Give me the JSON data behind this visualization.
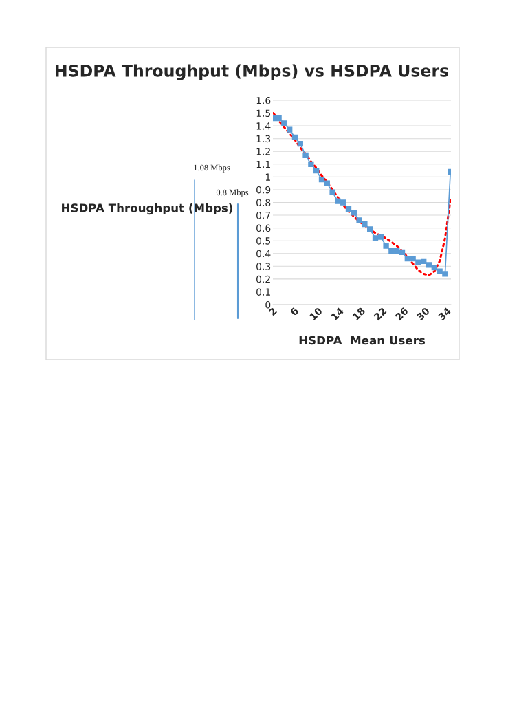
{
  "chart_data": {
    "type": "line",
    "title": "HSDPA Throughput (Mbps) vs HSDPA Users",
    "xlabel": "HSDPA  Mean Users",
    "ylabel": "HSDPA Throughput (Mbps)",
    "categories": [
      "2",
      null,
      null,
      null,
      "6",
      null,
      null,
      null,
      "10",
      null,
      null,
      null,
      "14",
      null,
      null,
      null,
      "18",
      null,
      null,
      null,
      "22",
      null,
      null,
      null,
      "26",
      null,
      null,
      null,
      "30",
      null,
      null,
      null,
      "34",
      null
    ],
    "series": [
      {
        "color": "#5b9bd5",
        "marker": "square",
        "line_style": "solid",
        "values": [
          1.46,
          1.46,
          1.42,
          1.37,
          1.31,
          1.26,
          1.17,
          1.1,
          1.05,
          0.98,
          0.95,
          0.88,
          0.81,
          0.8,
          0.75,
          0.72,
          0.66,
          0.63,
          0.59,
          0.52,
          0.53,
          0.46,
          0.42,
          0.42,
          0.41,
          0.36,
          0.36,
          0.33,
          0.34,
          0.31,
          0.29,
          0.26,
          0.24,
          1.04
        ]
      },
      {
        "color": "#ff0000",
        "marker": "none",
        "line_style": "dotted",
        "values": [
          1.5,
          1.44,
          1.39,
          1.34,
          1.29,
          1.23,
          1.18,
          1.12,
          1.07,
          1.01,
          0.96,
          0.9,
          0.84,
          0.78,
          0.73,
          0.69,
          0.65,
          0.62,
          0.59,
          0.56,
          0.54,
          0.52,
          0.49,
          0.46,
          0.42,
          0.37,
          0.32,
          0.27,
          0.24,
          0.23,
          0.26,
          0.34,
          0.52,
          0.82
        ]
      }
    ],
    "ylim": [
      0,
      1.6
    ],
    "yticks": [
      0,
      0.1,
      0.2,
      0.3,
      0.4,
      0.5,
      0.6,
      0.7,
      0.8,
      0.9,
      1,
      1.1,
      1.2,
      1.3,
      1.4,
      1.5,
      1.6
    ],
    "grid": "y",
    "legend": false,
    "annotations": [
      "1.08 Mbps",
      "0.8 Mbps"
    ]
  }
}
